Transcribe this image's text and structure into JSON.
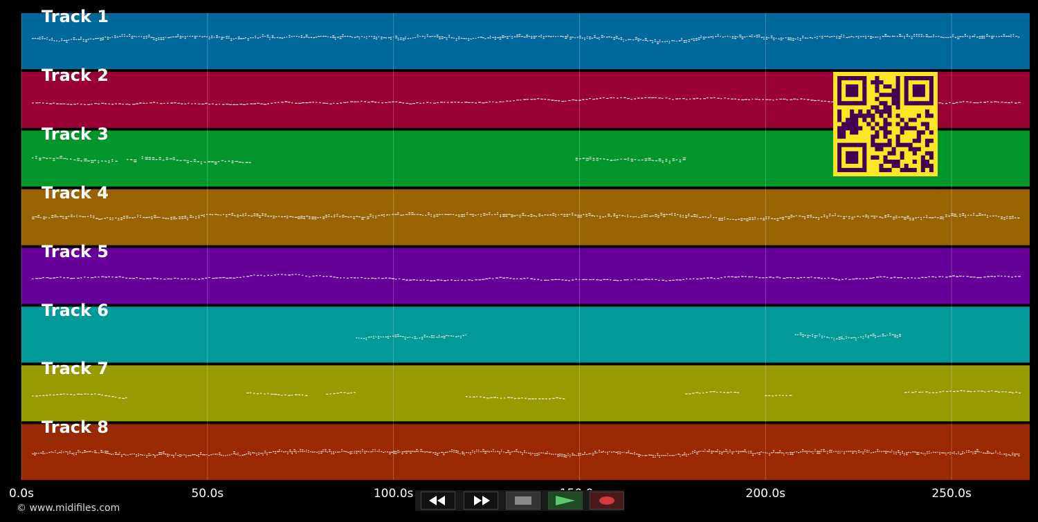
{
  "tracks": [
    {
      "label": "Track 1",
      "color": "#01689b"
    },
    {
      "label": "Track 2",
      "color": "#990033"
    },
    {
      "label": "Track 3",
      "color": "#02962a"
    },
    {
      "label": "Track 4",
      "color": "#996302"
    },
    {
      "label": "Track 5",
      "color": "#650199"
    },
    {
      "label": "Track 6",
      "color": "#029999"
    },
    {
      "label": "Track 7",
      "color": "#999902"
    },
    {
      "label": "Track 8",
      "color": "#992902"
    }
  ],
  "timeline": {
    "max_seconds": 271,
    "ticks": [
      {
        "seconds": 0,
        "label": "0.0s"
      },
      {
        "seconds": 50,
        "label": "50.0s"
      },
      {
        "seconds": 100,
        "label": "100.0s"
      },
      {
        "seconds": 150,
        "label": "150.0s"
      },
      {
        "seconds": 200,
        "label": "200.0s"
      },
      {
        "seconds": 250,
        "label": "250.0s"
      }
    ]
  },
  "copyright": "© www.midifiles.com",
  "transport": {
    "rewind": {
      "icon": "rewind-icon",
      "color": "#ffffff"
    },
    "fast_forward": {
      "icon": "fast-forward-icon",
      "color": "#ffffff"
    },
    "stop": {
      "icon": "stop-icon",
      "color": "#888888"
    },
    "play": {
      "icon": "play-icon",
      "color": "#5ec86a"
    },
    "record": {
      "icon": "record-icon",
      "color": "#d33a3a"
    }
  },
  "qr_code": {
    "icon": "qr-code-icon",
    "fg": "#440154",
    "bg": "#fde725"
  }
}
